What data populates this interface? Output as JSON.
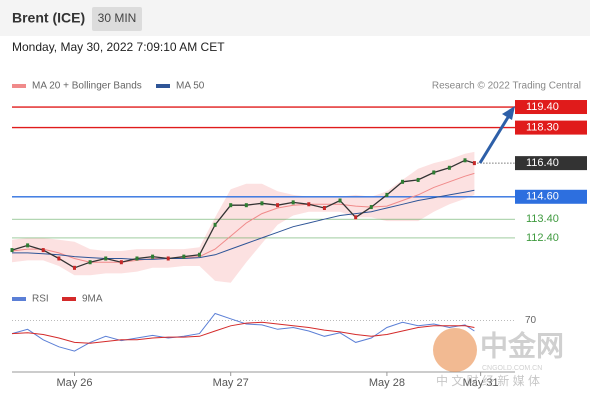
{
  "header": {
    "title": "Brent (ICE)",
    "interval": "30 MIN",
    "timestamp": "Monday, May 30, 2022 7:09:10 AM CET"
  },
  "watermark": {
    "name": "中金网",
    "domain": "CNGOLD.COM.CN",
    "tagline": "中 文 财 经 新 媒 体"
  },
  "chart_data": [
    {
      "type": "line",
      "credit": "Research © 2022 Trading Central",
      "x": [
        0,
        5,
        10,
        15,
        20,
        25,
        30,
        35,
        40,
        45,
        50,
        55,
        60,
        65,
        70,
        75,
        80,
        85,
        90,
        95,
        100,
        105,
        110,
        115,
        120,
        125,
        130,
        135,
        140,
        145,
        148
      ],
      "xlim": [
        0,
        161
      ],
      "xticks": [
        {
          "value": 20,
          "label": "May 26"
        },
        {
          "value": 70,
          "label": "May 27"
        },
        {
          "value": 120,
          "label": "May 28"
        },
        {
          "value": 150,
          "label": "May 31"
        }
      ],
      "ylim": [
        110,
        120
      ],
      "price_color": "#333333",
      "values": [
        111.75,
        112.0,
        111.75,
        111.3,
        110.8,
        111.1,
        111.3,
        111.1,
        111.3,
        111.4,
        111.3,
        111.4,
        111.5,
        113.1,
        114.15,
        114.15,
        114.25,
        114.15,
        114.3,
        114.2,
        114.0,
        114.4,
        113.5,
        114.05,
        114.7,
        115.4,
        115.5,
        115.9,
        116.15,
        116.55,
        116.4
      ],
      "series": [
        {
          "name": "MA 20 + Bollinger Bands",
          "color": "#f08a8a",
          "band_color": "#fbdada",
          "values": [
            111.7,
            111.8,
            111.8,
            111.6,
            111.3,
            111.1,
            111.1,
            111.1,
            111.2,
            111.3,
            111.3,
            111.35,
            111.4,
            111.8,
            112.5,
            113.2,
            113.7,
            114.0,
            114.15,
            114.2,
            114.2,
            114.2,
            114.1,
            114.05,
            114.1,
            114.4,
            114.7,
            115.1,
            115.4,
            115.7,
            115.85
          ],
          "band_upper": [
            112.3,
            112.4,
            112.4,
            112.3,
            112.2,
            111.8,
            111.7,
            111.7,
            111.8,
            111.8,
            111.8,
            111.8,
            111.9,
            113.5,
            115.0,
            115.3,
            115.3,
            114.9,
            114.7,
            114.6,
            114.6,
            114.6,
            114.7,
            114.6,
            114.9,
            115.5,
            116.1,
            116.4,
            116.6,
            116.9,
            117.0
          ],
          "band_lower": [
            111.1,
            111.2,
            111.2,
            110.9,
            110.4,
            110.4,
            110.5,
            110.5,
            110.6,
            110.8,
            110.8,
            110.9,
            110.9,
            110.1,
            110.0,
            111.1,
            112.1,
            113.1,
            113.6,
            113.8,
            113.8,
            113.8,
            113.5,
            113.5,
            113.3,
            113.3,
            113.3,
            113.8,
            114.2,
            114.5,
            114.7
          ]
        },
        {
          "name": "MA 50",
          "color": "#2f5597",
          "values": [
            111.6,
            111.6,
            111.55,
            111.5,
            111.4,
            111.35,
            111.3,
            111.3,
            111.25,
            111.25,
            111.3,
            111.3,
            111.35,
            111.5,
            111.8,
            112.1,
            112.4,
            112.7,
            113.0,
            113.2,
            113.4,
            113.6,
            113.7,
            113.8,
            114.0,
            114.2,
            114.4,
            114.55,
            114.7,
            114.85,
            114.95
          ]
        }
      ],
      "levels": [
        {
          "value": 119.4,
          "label": "119.40",
          "color": "#e01b1b",
          "line": "solid",
          "tag": "box"
        },
        {
          "value": 118.3,
          "label": "118.30",
          "color": "#e01b1b",
          "line": "solid",
          "tag": "box"
        },
        {
          "value": 116.4,
          "label": "116.40",
          "color": "#333333",
          "line": "dotted",
          "tag": "box"
        },
        {
          "value": 114.6,
          "label": "114.60",
          "color": "#2d6fdf",
          "line": "solid",
          "tag": "box"
        },
        {
          "value": 113.4,
          "label": "113.40",
          "color": "#3f9a3f",
          "line": "thin",
          "tag": "text"
        },
        {
          "value": 112.4,
          "label": "112.40",
          "color": "#3f9a3f",
          "line": "thin",
          "tag": "text"
        }
      ]
    },
    {
      "type": "line",
      "xlim": [
        0,
        161
      ],
      "ylim": [
        10,
        90
      ],
      "yticks": [
        70
      ],
      "series": [
        {
          "name": "RSI",
          "color": "#5b7fd6",
          "values": [
            55,
            60,
            48,
            40,
            35,
            45,
            52,
            47,
            50,
            53,
            50,
            52,
            55,
            78,
            72,
            66,
            65,
            60,
            62,
            58,
            52,
            56,
            45,
            50,
            62,
            68,
            64,
            66,
            62,
            65,
            58
          ]
        },
        {
          "name": "9MA",
          "color": "#d42a2a",
          "values": [
            55,
            56,
            54,
            50,
            45,
            44,
            46,
            48,
            48,
            50,
            51,
            51,
            52,
            58,
            64,
            67,
            68,
            66,
            64,
            62,
            59,
            57,
            54,
            52,
            54,
            58,
            62,
            64,
            64,
            64,
            62
          ]
        }
      ]
    }
  ]
}
